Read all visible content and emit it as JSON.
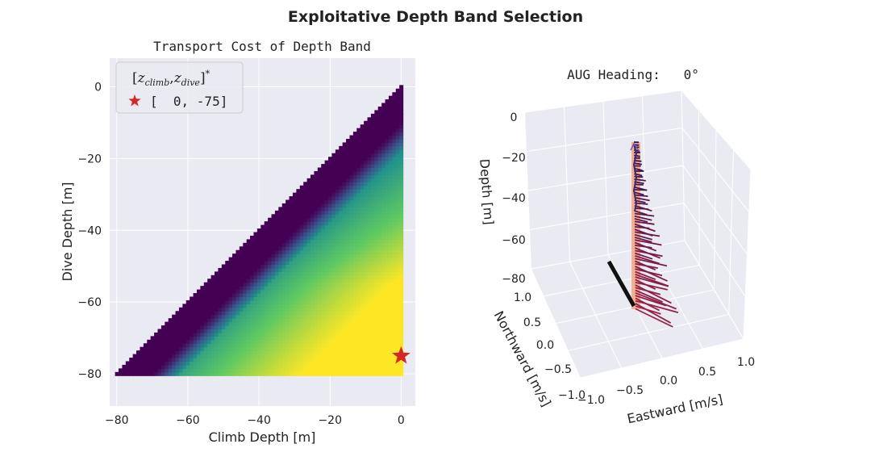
{
  "figure": {
    "suptitle": "Exploitative Depth Band Selection"
  },
  "chart_data": [
    {
      "type": "heatmap",
      "title": "Transport Cost of Depth Band",
      "xlabel": "Climb Depth [m]",
      "ylabel": "Dive Depth [m]",
      "xlim": [
        -82,
        4
      ],
      "ylim": [
        -89,
        8
      ],
      "xticks": [
        -80,
        -60,
        -40,
        -20,
        0
      ],
      "yticks": [
        0,
        -20,
        -40,
        -60,
        -80
      ],
      "xtick_labels": [
        "−80",
        "−60",
        "−40",
        "−20",
        "0"
      ],
      "ytick_labels": [
        "0",
        "−20",
        "−40",
        "−60",
        "−80"
      ],
      "grid": true,
      "colormap": "viridis",
      "legend": {
        "placement": "upper-left",
        "title_math": "[z_climb, z_dive]*",
        "title_parts": {
          "open": "[",
          "z1": "z",
          "sub1": "climb",
          "comma": ",",
          "z2": "z",
          "sub2": "dive",
          "close": "]",
          "sup": "*"
        },
        "entries": [
          {
            "label": "[  0, -75]",
            "marker": "star",
            "color": "#d62728"
          }
        ]
      },
      "optimum": {
        "climb": 0,
        "dive": -75,
        "color": "#d62728"
      }
    },
    {
      "type": "3d-quiver",
      "title": "AUG Heading:   0°",
      "xlabel": "Eastward [m/s]",
      "ylabel": "Northward [m/s]",
      "zlabel": "Depth [m]",
      "xlim": [
        -1.0,
        1.0
      ],
      "ylim": [
        -1.0,
        1.0
      ],
      "zlim": [
        -80,
        0
      ],
      "xticks": [
        -1.0,
        -0.5,
        0.0,
        0.5,
        1.0
      ],
      "yticks": [
        1.0,
        0.5,
        0.0,
        -0.5,
        -1.0
      ],
      "zticks": [
        0,
        -20,
        -40,
        -60,
        -80
      ],
      "xtick_labels": [
        "−1.0",
        "−0.5",
        "0.0",
        "0.5",
        "1.0"
      ],
      "ytick_labels": [
        "1.0",
        "0.5",
        "0.0",
        "−0.5",
        "−1.0"
      ],
      "ztick_labels": [
        "0",
        "−20",
        "−40",
        "−60",
        "−80"
      ],
      "depth_band": {
        "top": -17,
        "bottom": -80,
        "color": "#f4a582"
      },
      "heading_color": "#111111",
      "arrow_colormap": "magma-dark",
      "arrows_note": "current profile vectors every ~1 m from -17 m to -80 m"
    }
  ]
}
